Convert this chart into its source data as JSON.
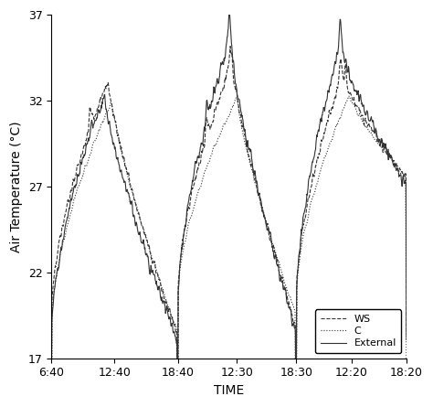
{
  "ylabel": "Air Temperature (°C)",
  "xlabel": "TIME",
  "ylim": [
    17,
    37
  ],
  "yticks": [
    17,
    22,
    27,
    32,
    37
  ],
  "xtick_labels": [
    "6:40",
    "12:40",
    "18:40",
    "12:30",
    "18:30",
    "12:20",
    "18:20"
  ],
  "legend_labels": [
    "WS",
    "C",
    "External"
  ],
  "line_color": "#333333",
  "background_color": "#ffffff",
  "figsize": [
    4.74,
    4.45
  ],
  "dpi": 100,
  "noise_scale": 0.3
}
